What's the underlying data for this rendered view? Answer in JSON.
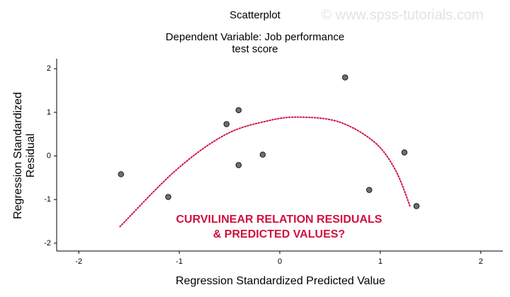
{
  "chart_data": {
    "type": "scatter",
    "title": "Scatterplot",
    "subtitle": [
      "Dependent Variable: Job performance",
      "test score"
    ],
    "watermark": "© www.spss-tutorials.com",
    "x_label": "Regression Standardized Predicted Value",
    "y_label": [
      "Regression Standardized",
      "Residual"
    ],
    "annotation": [
      "CURVILINEAR RELATION RESIDUALS",
      "& PREDICTED VALUES?"
    ],
    "annotation_color": "#d0103f",
    "xlim": [
      -2.22,
      2.22
    ],
    "ylim": [
      -2.18,
      2.23
    ],
    "xticks": [
      -2,
      -1,
      0,
      1,
      2
    ],
    "yticks": [
      -2,
      -1,
      0,
      1,
      2
    ],
    "grid": false,
    "marker_color": "#6e6e6e",
    "x": [
      -1.58,
      -1.11,
      -0.53,
      -0.41,
      -0.41,
      -0.17,
      0.65,
      0.89,
      1.24,
      1.36
    ],
    "y": [
      -0.42,
      -0.94,
      0.73,
      1.05,
      -0.21,
      0.03,
      1.8,
      -0.78,
      0.08,
      -1.15
    ],
    "fit_curve": {
      "color": "#d0103f",
      "x": [
        -1.59,
        -1.03,
        -0.54,
        -0.11,
        0.2,
        0.59,
        0.94,
        1.15,
        1.3
      ],
      "y": [
        -1.62,
        -0.32,
        0.49,
        0.81,
        0.89,
        0.78,
        0.32,
        -0.32,
        -1.18
      ]
    }
  }
}
